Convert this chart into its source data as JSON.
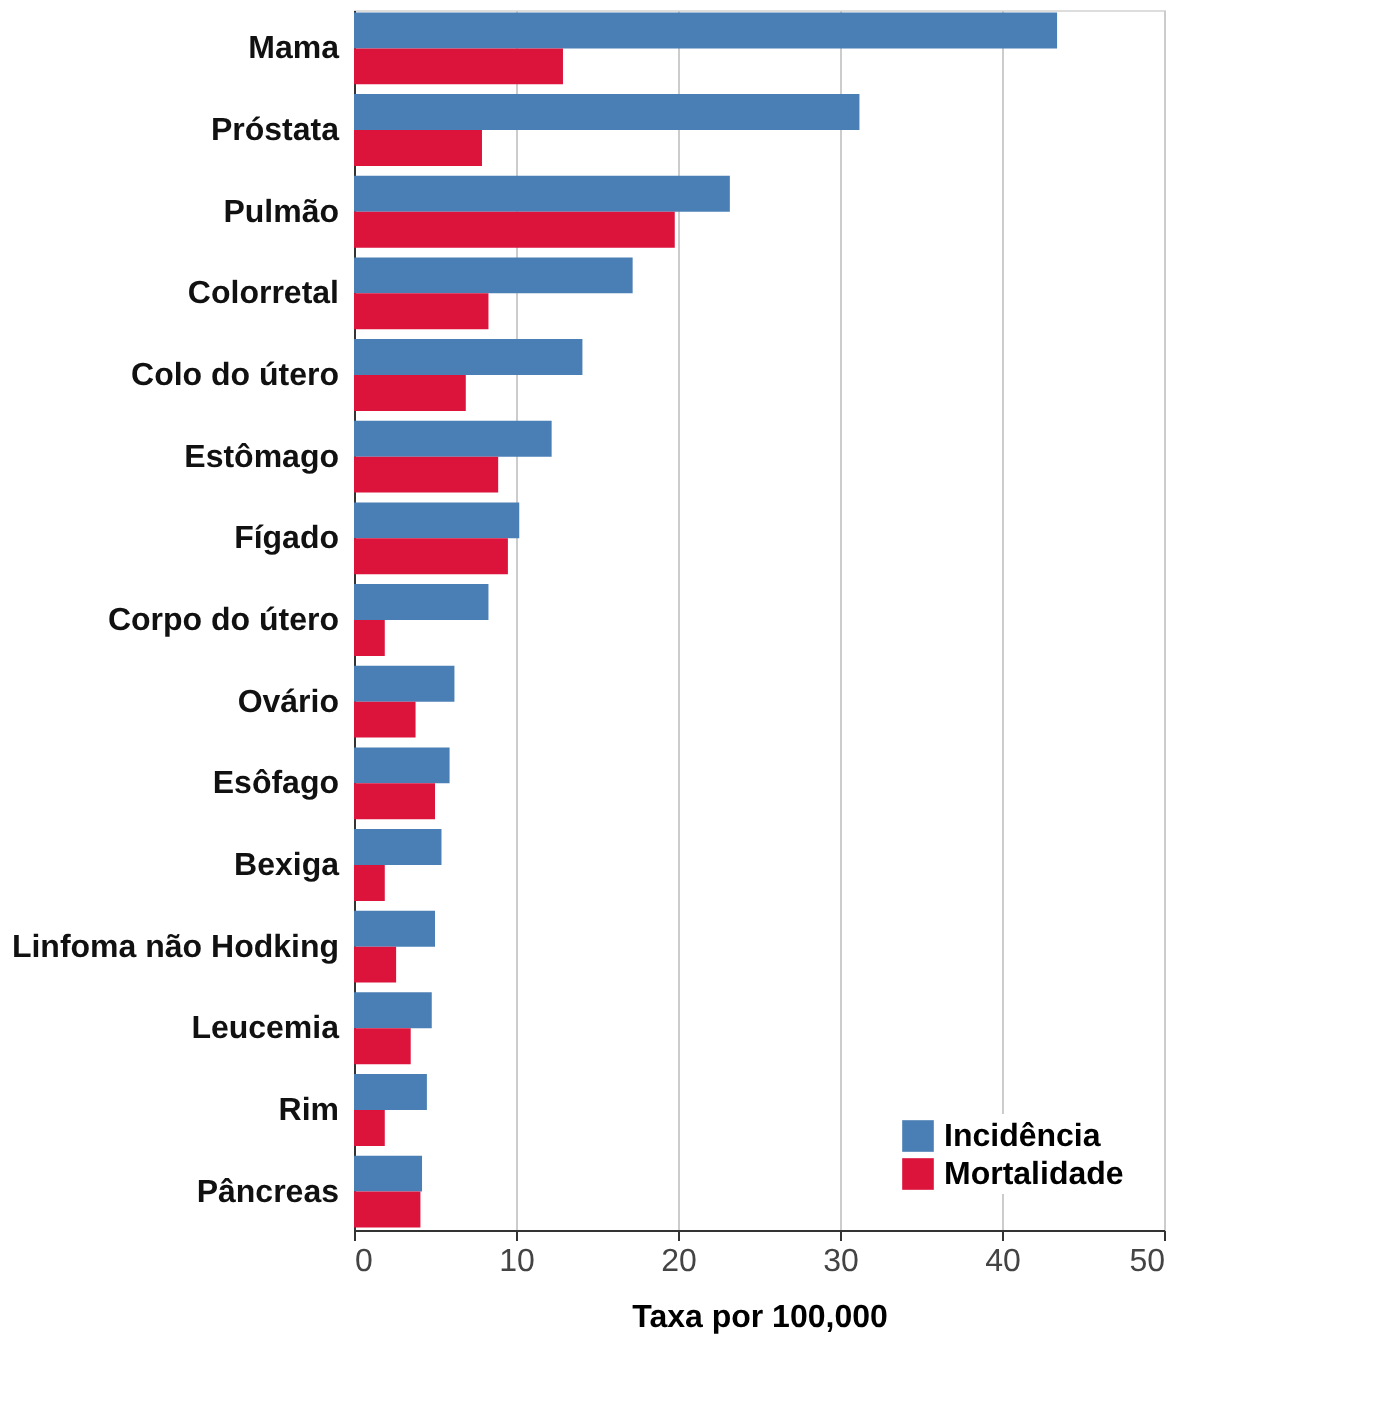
{
  "chart_data": {
    "type": "bar",
    "orientation": "horizontal",
    "xlabel": "Taxa por 100,000",
    "categories": [
      "Mama",
      "Próstata",
      "Pulmão",
      "Colorretal",
      "Colo do útero",
      "Estômago",
      "Fígado",
      "Corpo do útero",
      "Ovário",
      "Esôfago",
      "Bexiga",
      "Linfoma não Hodking",
      "Leucemia",
      "Rim",
      "Pâncreas"
    ],
    "series": [
      {
        "name": "Incidência",
        "color": "#4a7fb5",
        "values": [
          43.4,
          31.2,
          23.2,
          17.2,
          14.1,
          12.2,
          10.2,
          8.3,
          6.2,
          5.9,
          5.4,
          5.0,
          4.8,
          4.5,
          4.2
        ]
      },
      {
        "name": "Mortalidade",
        "color": "#dc143c",
        "values": [
          12.9,
          7.9,
          19.8,
          8.3,
          6.9,
          8.9,
          9.5,
          1.9,
          3.8,
          5.0,
          1.9,
          2.6,
          3.5,
          1.9,
          4.1
        ]
      }
    ],
    "xlim": [
      0,
      50
    ],
    "xticks": [
      0,
      10,
      20,
      30,
      40,
      50
    ],
    "grid": "x",
    "legend": "bottom right"
  }
}
